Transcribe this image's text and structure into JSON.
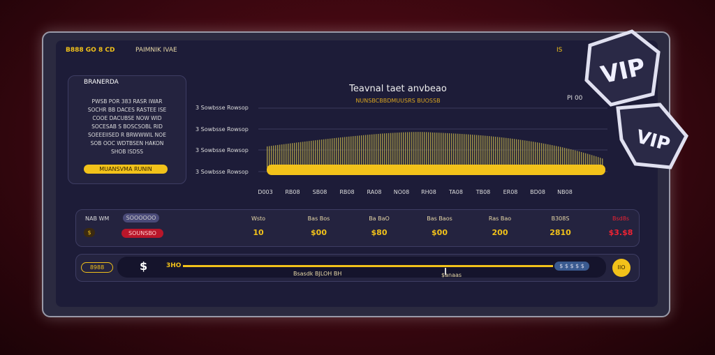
{
  "header": {
    "brand": "B888 GO 8 CD",
    "subtitle": "PAIMNIK IVAE",
    "right": "IS"
  },
  "info_card": {
    "title": "BRANERDA",
    "body": "PWSB POR 383 RASR IWAR SOCHR BB DACES RASTEE ISE COOE DACUBSE NOW WID SOCESAB S BOSCSOBL RID SOEEEIISED R BRWWWIL NOE SOB OOC WDTBSEN HAKON SHOB ISDSS",
    "button": "MUANSVMA RUNIN"
  },
  "chart_panel": {
    "title": "Teavnal taet anvbeao",
    "subtitle": "NUNSBCBBDMUUSRS BUOSSB",
    "corner_label": "PI 00",
    "row_labels": [
      "3 Sowbsse Rowsop",
      "3 Sowbsse Rowsop",
      "3 Sowbsse Rowsop",
      "3 Sowbsse Rowsop"
    ],
    "axis_labels": [
      "D003",
      "RB08",
      "SB08",
      "RB08",
      "RA08",
      "NO08",
      "RH08",
      "TA08",
      "TB08",
      "ER08",
      "BD08",
      "NB08"
    ]
  },
  "stats": {
    "label": "NAB WM",
    "pill": "SOOOOOO",
    "coin": "$",
    "red_pill": "SOUNSBO",
    "columns": [
      {
        "label": "Wsto",
        "value": "10"
      },
      {
        "label": "Bas Bos",
        "value": "$00"
      },
      {
        "label": "Ba BaO",
        "value": "$80"
      },
      {
        "label": "Bas Baos",
        "value": "$00"
      },
      {
        "label": "Ras Bao",
        "value": "200"
      },
      {
        "label": "B308S",
        "value": "2810"
      },
      {
        "label": "Bsd8s",
        "value": "$3.$8"
      }
    ]
  },
  "bottom_bar": {
    "badge": "8988",
    "coin": "$",
    "start": "3HO",
    "center_label": "Bsasdk BJLOH BH",
    "marker_label": "$anaas",
    "pill": "$ $ $ $ $",
    "button": "IIO"
  },
  "badges": [
    "VIP",
    "VIP"
  ]
}
